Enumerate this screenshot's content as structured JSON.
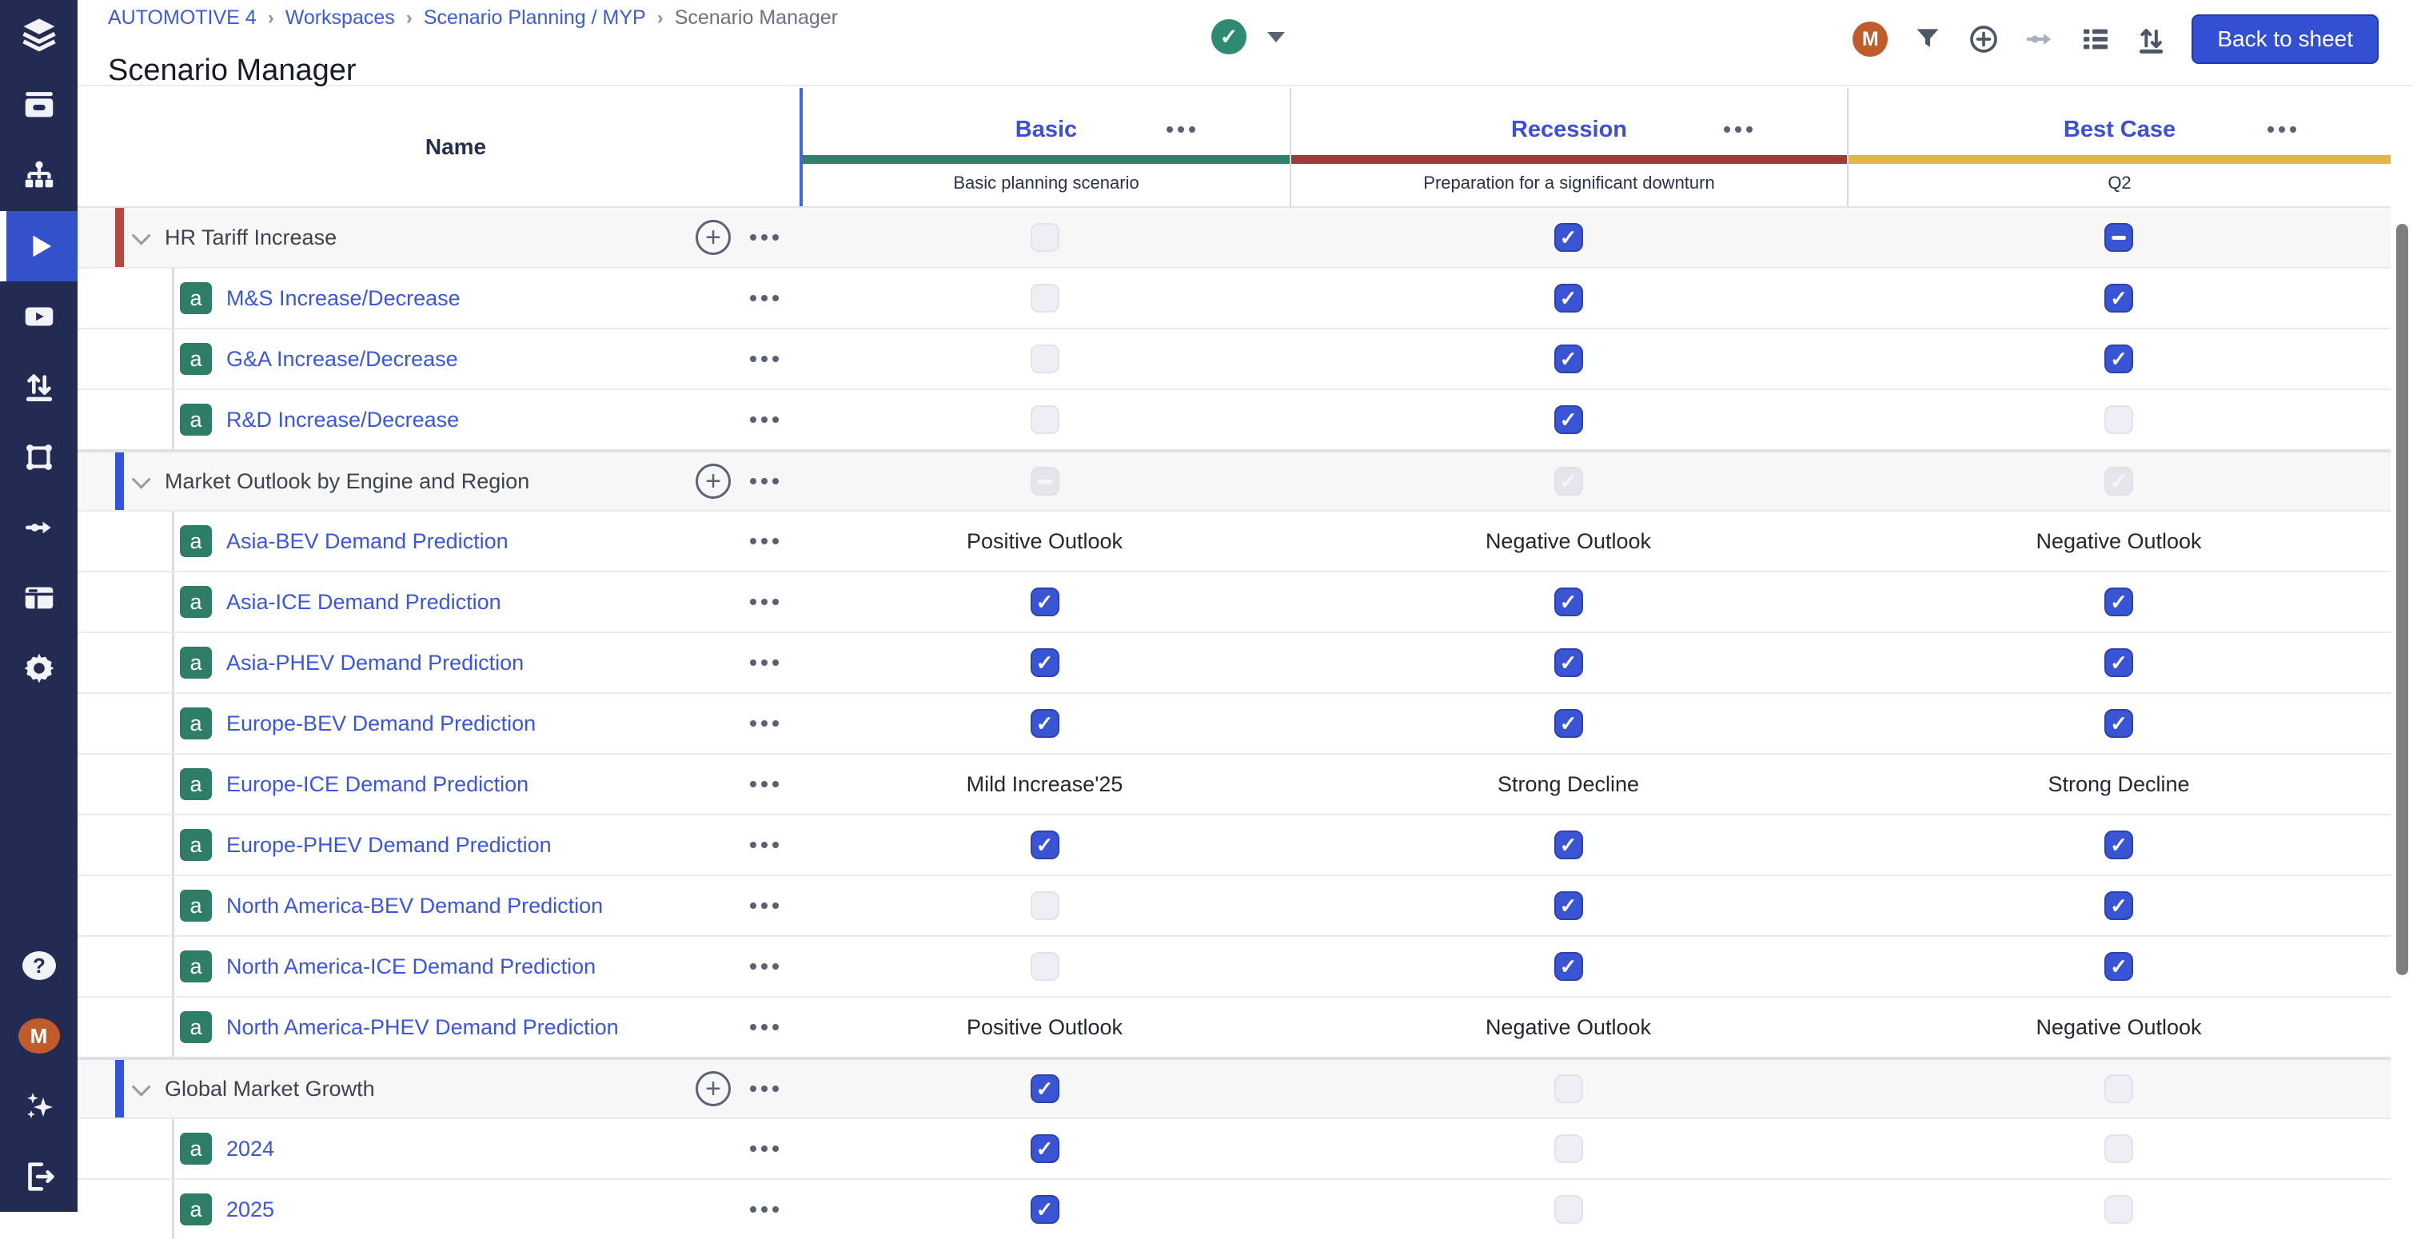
{
  "topbar": {
    "breadcrumb": [
      {
        "label": "AUTOMOTIVE 4",
        "link": true
      },
      {
        "label": "Workspaces",
        "link": true
      },
      {
        "label": "Scenario Planning / MYP",
        "link": true
      },
      {
        "label": "Scenario Manager",
        "link": false
      }
    ],
    "title": "Scenario Manager",
    "status": {
      "icon": "check-circle",
      "color": "#2E8B72"
    },
    "toolbar": {
      "avatar_initial": "M",
      "icons": [
        "filter",
        "add-circle",
        "data-flow",
        "list",
        "sort"
      ],
      "back_button": "Back to sheet"
    }
  },
  "sidebar": {
    "top_icons": [
      {
        "name": "layers-logo",
        "active": false
      },
      {
        "name": "inbox",
        "active": false
      },
      {
        "name": "hierarchy",
        "active": false
      },
      {
        "name": "play",
        "active": true
      },
      {
        "name": "video",
        "active": false
      },
      {
        "name": "import-export",
        "active": false
      },
      {
        "name": "model-cube",
        "active": false
      },
      {
        "name": "data-flow",
        "active": false
      },
      {
        "name": "data-table",
        "active": false
      },
      {
        "name": "settings",
        "active": false
      }
    ],
    "bottom_icons": [
      {
        "name": "help"
      },
      {
        "name": "user-avatar",
        "initial": "M"
      },
      {
        "name": "ai-sparkles"
      },
      {
        "name": "logout"
      }
    ]
  },
  "table": {
    "name_header": "Name",
    "columns": [
      {
        "id": "basic",
        "label": "Basic",
        "subtitle": "Basic planning scenario",
        "accent": "#31806B"
      },
      {
        "id": "recession",
        "label": "Recession",
        "subtitle": "Preparation for a significant downturn",
        "accent": "#9E3A3A"
      },
      {
        "id": "best-case",
        "label": "Best Case",
        "subtitle": "Q2",
        "accent": "#E5B54A"
      }
    ],
    "rows": [
      {
        "type": "group",
        "label": "HR Tariff Increase",
        "bar": "red",
        "cells": [
          {
            "kind": "checkbox",
            "state": "unchecked"
          },
          {
            "kind": "checkbox",
            "state": "checked"
          },
          {
            "kind": "checkbox",
            "state": "indeterminate"
          }
        ]
      },
      {
        "type": "item",
        "label": "M&S Increase/Decrease",
        "cells": [
          {
            "kind": "checkbox",
            "state": "unchecked"
          },
          {
            "kind": "checkbox",
            "state": "checked"
          },
          {
            "kind": "checkbox",
            "state": "checked"
          }
        ]
      },
      {
        "type": "item",
        "label": "G&A Increase/Decrease",
        "cells": [
          {
            "kind": "checkbox",
            "state": "unchecked"
          },
          {
            "kind": "checkbox",
            "state": "checked"
          },
          {
            "kind": "checkbox",
            "state": "checked"
          }
        ]
      },
      {
        "type": "item",
        "label": "R&D Increase/Decrease",
        "cells": [
          {
            "kind": "checkbox",
            "state": "unchecked"
          },
          {
            "kind": "checkbox",
            "state": "checked"
          },
          {
            "kind": "checkbox",
            "state": "unchecked"
          }
        ]
      },
      {
        "type": "group",
        "label": "Market Outlook by Engine and Region",
        "bar": "blue",
        "cells": [
          {
            "kind": "checkbox",
            "state": "indeterminate-disabled"
          },
          {
            "kind": "checkbox",
            "state": "checked-disabled"
          },
          {
            "kind": "checkbox",
            "state": "checked-disabled"
          }
        ]
      },
      {
        "type": "item",
        "label": "Asia-BEV Demand Prediction",
        "cells": [
          {
            "kind": "text",
            "value": "Positive Outlook"
          },
          {
            "kind": "text",
            "value": "Negative Outlook"
          },
          {
            "kind": "text",
            "value": "Negative Outlook"
          }
        ]
      },
      {
        "type": "item",
        "label": "Asia-ICE Demand Prediction",
        "cells": [
          {
            "kind": "checkbox",
            "state": "checked"
          },
          {
            "kind": "checkbox",
            "state": "checked"
          },
          {
            "kind": "checkbox",
            "state": "checked"
          }
        ]
      },
      {
        "type": "item",
        "label": "Asia-PHEV Demand Prediction",
        "cells": [
          {
            "kind": "checkbox",
            "state": "checked"
          },
          {
            "kind": "checkbox",
            "state": "checked"
          },
          {
            "kind": "checkbox",
            "state": "checked"
          }
        ]
      },
      {
        "type": "item",
        "label": "Europe-BEV Demand Prediction",
        "cells": [
          {
            "kind": "checkbox",
            "state": "checked"
          },
          {
            "kind": "checkbox",
            "state": "checked"
          },
          {
            "kind": "checkbox",
            "state": "checked"
          }
        ]
      },
      {
        "type": "item",
        "label": "Europe-ICE Demand Prediction",
        "cells": [
          {
            "kind": "text",
            "value": "Mild Increase'25"
          },
          {
            "kind": "text",
            "value": "Strong Decline"
          },
          {
            "kind": "text",
            "value": "Strong Decline"
          }
        ]
      },
      {
        "type": "item",
        "label": "Europe-PHEV Demand Prediction",
        "cells": [
          {
            "kind": "checkbox",
            "state": "checked"
          },
          {
            "kind": "checkbox",
            "state": "checked"
          },
          {
            "kind": "checkbox",
            "state": "checked"
          }
        ]
      },
      {
        "type": "item",
        "label": "North America-BEV Demand Prediction",
        "cells": [
          {
            "kind": "checkbox",
            "state": "unchecked"
          },
          {
            "kind": "checkbox",
            "state": "checked"
          },
          {
            "kind": "checkbox",
            "state": "checked"
          }
        ]
      },
      {
        "type": "item",
        "label": "North America-ICE Demand Prediction",
        "cells": [
          {
            "kind": "checkbox",
            "state": "unchecked"
          },
          {
            "kind": "checkbox",
            "state": "checked"
          },
          {
            "kind": "checkbox",
            "state": "checked"
          }
        ]
      },
      {
        "type": "item",
        "label": "North America-PHEV Demand Prediction",
        "cells": [
          {
            "kind": "text",
            "value": "Positive Outlook"
          },
          {
            "kind": "text",
            "value": "Negative Outlook"
          },
          {
            "kind": "text",
            "value": "Negative Outlook"
          }
        ]
      },
      {
        "type": "group",
        "label": "Global Market Growth",
        "bar": "blue",
        "cells": [
          {
            "kind": "checkbox",
            "state": "checked"
          },
          {
            "kind": "checkbox",
            "state": "unchecked"
          },
          {
            "kind": "checkbox",
            "state": "unchecked"
          }
        ]
      },
      {
        "type": "item",
        "label": "2024",
        "cells": [
          {
            "kind": "checkbox",
            "state": "checked"
          },
          {
            "kind": "checkbox",
            "state": "unchecked"
          },
          {
            "kind": "checkbox",
            "state": "unchecked"
          }
        ]
      },
      {
        "type": "item",
        "label": "2025",
        "cells": [
          {
            "kind": "checkbox",
            "state": "checked"
          },
          {
            "kind": "checkbox",
            "state": "unchecked"
          },
          {
            "kind": "checkbox",
            "state": "unchecked"
          }
        ]
      }
    ]
  },
  "colors": {
    "sidebar_bg": "#242B52",
    "sidebar_active": "#3351CB",
    "checkbox_blue": "#3A55D4",
    "link_blue": "#3B55E3",
    "group_bar_red": "#B04A41",
    "group_bar_blue": "#3353D8",
    "badge_teal": "#2E7D66",
    "avatar_orange": "#C05C2B",
    "status_green": "#2E8B72"
  }
}
